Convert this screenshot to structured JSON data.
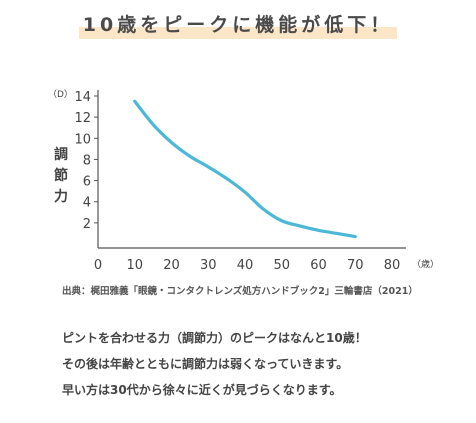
{
  "title": "10歳をピークに機能が低下！",
  "source": "出典：梶田雅義「眼鏡・コンタクトレンズ処方ハンドブック2」三輪書店（2021）",
  "body_lines": [
    "ピントを合わせる力（調節力）のピークはなんと10歳！",
    "その後は年齢とともに調節力は弱くなっていきます。",
    "早い方は30代から徐々に近くが見づらくなります。"
  ],
  "colors": {
    "line": "#4bb8d8",
    "axis": "#555555",
    "highlight": "#fbe6c8"
  },
  "chart_data": {
    "type": "line",
    "title": "",
    "xlabel": "（歳）",
    "ylabel": "調節力",
    "yunit": "（D）",
    "xlim": [
      0,
      80
    ],
    "ylim": [
      0,
      14
    ],
    "xticks": [
      0,
      10,
      20,
      30,
      40,
      50,
      60,
      70,
      80
    ],
    "yticks": [
      2,
      4,
      6,
      8,
      10,
      12,
      14
    ],
    "grid": false,
    "series": [
      {
        "x": [
          10,
          15,
          20,
          25,
          30,
          35,
          40,
          45,
          50,
          55,
          60,
          65,
          70
        ],
        "values": [
          13.5,
          11.3,
          9.6,
          8.3,
          7.3,
          6.2,
          4.9,
          3.3,
          2.2,
          1.7,
          1.3,
          1.0,
          0.7
        ]
      }
    ]
  }
}
